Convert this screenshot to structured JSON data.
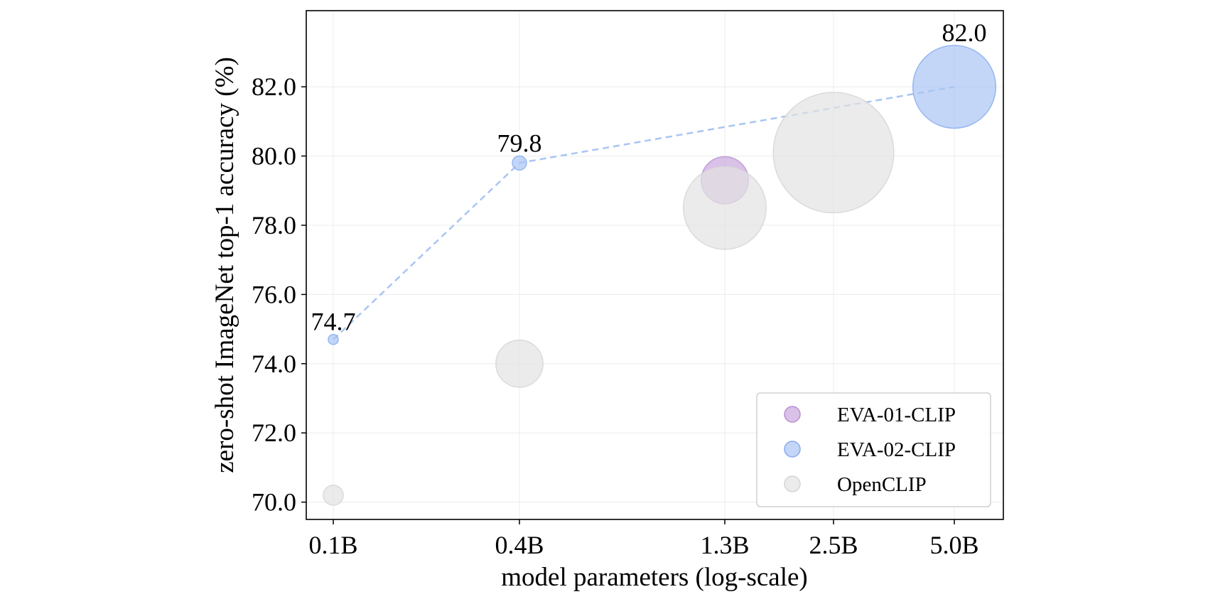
{
  "chart_data": {
    "type": "scatter",
    "title": "",
    "xlabel": "model parameters (log-scale)",
    "ylabel": "zero-shot ImageNet top-1 accuracy (%)",
    "x_scale": "log",
    "x_ticks": [
      0.1,
      0.4,
      1.3,
      2.5,
      5.0
    ],
    "x_tick_labels": [
      "0.1B",
      "0.4B",
      "1.3B",
      "2.5B",
      "5.0B"
    ],
    "y_ticks": [
      70,
      72,
      74,
      76,
      78,
      80,
      82
    ],
    "y_tick_labels": [
      "70.0",
      "72.0",
      "74.0",
      "76.0",
      "78.0",
      "80.0",
      "82.0"
    ],
    "ylim": [
      69.5,
      84.2
    ],
    "grid": true,
    "legend_position": "lower-right",
    "bubble_size_note_unit": "relative area",
    "series": [
      {
        "name": "EVA-01-CLIP",
        "color": "#c9a6dd",
        "edge_color": "#b98fd4",
        "connected": false,
        "points": [
          {
            "x": 1.3,
            "y": 79.3,
            "size": 11
          }
        ]
      },
      {
        "name": "EVA-02-CLIP",
        "color": "#a9c5f3",
        "edge_color": "#86aaf0",
        "connected": true,
        "line_style": "dashed",
        "points": [
          {
            "x": 0.1,
            "y": 74.7,
            "size": 0.5,
            "label": "74.7"
          },
          {
            "x": 0.4,
            "y": 79.8,
            "size": 1,
            "label": "79.8"
          },
          {
            "x": 5.0,
            "y": 82.0,
            "size": 34,
            "label": "82.0"
          }
        ]
      },
      {
        "name": "OpenCLIP",
        "color": "#e2e2e2",
        "edge_color": "#d4d4d4",
        "connected": false,
        "points": [
          {
            "x": 0.1,
            "y": 70.2,
            "size": 2
          },
          {
            "x": 0.4,
            "y": 74.0,
            "size": 11
          },
          {
            "x": 1.3,
            "y": 78.5,
            "size": 34
          },
          {
            "x": 2.5,
            "y": 80.1,
            "size": 72
          }
        ]
      }
    ]
  }
}
